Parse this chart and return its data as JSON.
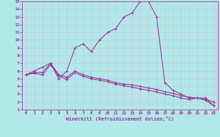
{
  "title": "",
  "xlabel": "Windchill (Refroidissement éolien,°C)",
  "ylabel": "",
  "background_color": "#b2e8e8",
  "grid_color": "#c8c8e8",
  "line_color": "#993399",
  "xlim": [
    -0.5,
    23.5
  ],
  "ylim": [
    1,
    15
  ],
  "xticks": [
    0,
    1,
    2,
    3,
    4,
    5,
    6,
    7,
    8,
    9,
    10,
    11,
    12,
    13,
    14,
    15,
    16,
    17,
    18,
    19,
    20,
    21,
    22,
    23
  ],
  "yticks": [
    1,
    2,
    3,
    4,
    5,
    6,
    7,
    8,
    9,
    10,
    11,
    12,
    13,
    14,
    15
  ],
  "curve1_x": [
    0,
    1,
    2,
    3,
    4,
    5,
    6,
    7,
    8,
    9,
    10,
    11,
    12,
    13,
    14,
    15,
    16,
    17,
    18,
    19,
    20,
    21,
    22,
    23
  ],
  "curve1_y": [
    5.5,
    6.0,
    6.5,
    7.0,
    5.0,
    6.0,
    9.0,
    9.5,
    8.5,
    10.0,
    11.0,
    11.5,
    13.0,
    13.5,
    15.0,
    15.0,
    13.0,
    4.5,
    3.5,
    3.0,
    2.5,
    2.5,
    2.5,
    1.5
  ],
  "curve2_x": [
    0,
    1,
    2,
    3,
    4,
    5,
    6,
    7,
    8,
    9,
    10,
    11,
    12,
    13,
    14,
    15,
    16,
    17,
    18,
    19,
    20,
    21,
    22,
    23
  ],
  "curve2_y": [
    5.5,
    5.8,
    5.8,
    7.0,
    5.5,
    5.2,
    6.0,
    5.5,
    5.2,
    5.0,
    4.8,
    4.5,
    4.3,
    4.2,
    4.0,
    3.8,
    3.6,
    3.3,
    3.1,
    2.8,
    2.6,
    2.5,
    2.3,
    2.0
  ],
  "curve3_x": [
    0,
    1,
    2,
    3,
    4,
    5,
    6,
    7,
    8,
    9,
    10,
    11,
    12,
    13,
    14,
    15,
    16,
    17,
    18,
    19,
    20,
    21,
    22,
    23
  ],
  "curve3_y": [
    5.5,
    5.7,
    5.5,
    6.8,
    5.4,
    4.9,
    5.8,
    5.3,
    5.0,
    4.8,
    4.6,
    4.3,
    4.1,
    3.9,
    3.7,
    3.5,
    3.3,
    3.0,
    2.8,
    2.5,
    2.3,
    2.5,
    2.2,
    1.5
  ]
}
